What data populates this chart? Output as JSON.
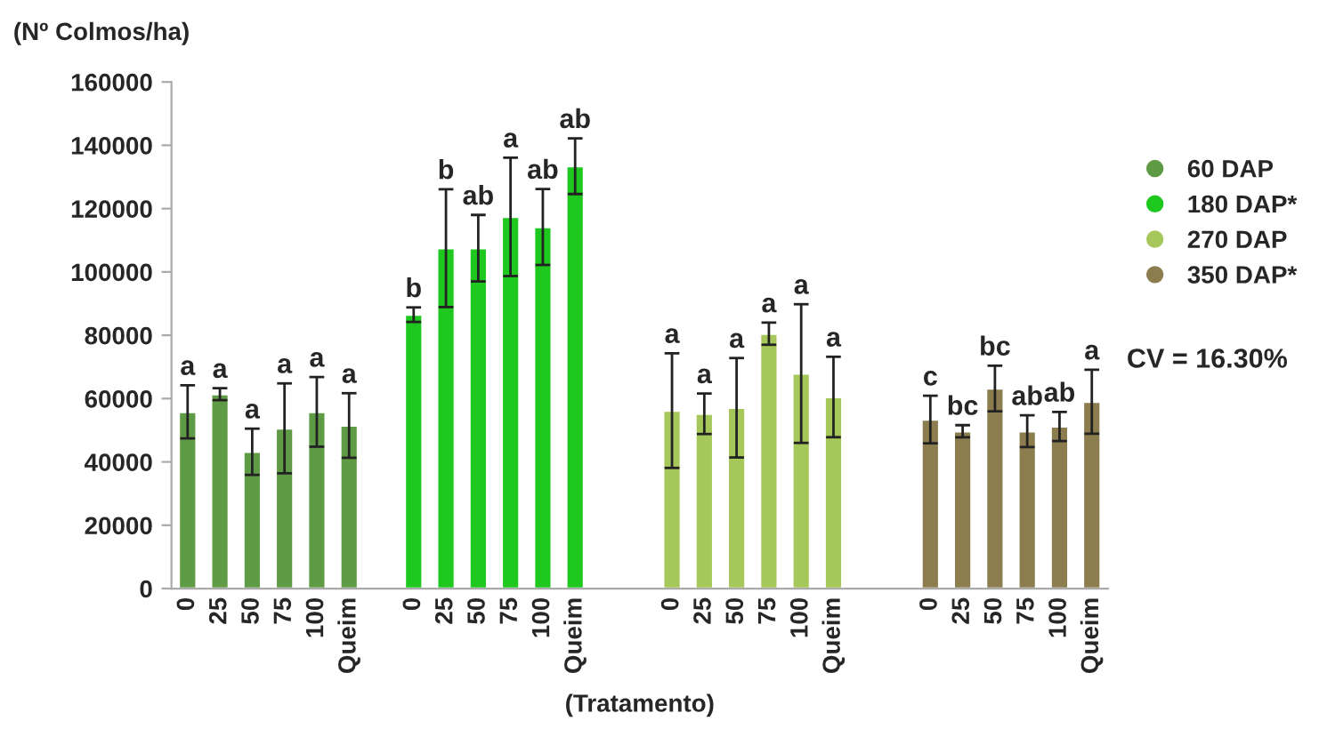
{
  "chart_data": {
    "type": "bar",
    "ylabel": "(Nº Colmos/ha)",
    "xlabel": "(Tratamento)",
    "categories": [
      "0",
      "25",
      "50",
      "75",
      "100",
      "Queim",
      null,
      "0",
      "25",
      "50",
      "75",
      "100",
      "Queim",
      null,
      null,
      "0",
      "25",
      "50",
      "75",
      "100",
      "Queim",
      null,
      null,
      "0",
      "25",
      "50",
      "75",
      "100",
      "Queim"
    ],
    "series": [
      {
        "name": "60 DAP",
        "color": "#5f9a45",
        "values": [
          55800,
          61400,
          43200,
          50600,
          55800,
          51500,
          null,
          null,
          null,
          null,
          null,
          null,
          null,
          null,
          null,
          null,
          null,
          null,
          null,
          null,
          null,
          null,
          null,
          null,
          null,
          null,
          null,
          null,
          null
        ],
        "errors": [
          8400,
          1900,
          7300,
          14200,
          11000,
          10200,
          null,
          null,
          null,
          null,
          null,
          null,
          null,
          null,
          null,
          null,
          null,
          null,
          null,
          null,
          null,
          null,
          null,
          null,
          null,
          null,
          null,
          null,
          null
        ],
        "value_labels": [
          "a",
          "a",
          "a",
          "a",
          "a",
          "a",
          null,
          null,
          null,
          null,
          null,
          null,
          null,
          null,
          null,
          null,
          null,
          null,
          null,
          null,
          null,
          null,
          null,
          null,
          null,
          null,
          null,
          null,
          null
        ]
      },
      {
        "name": "180 DAP*",
        "color": "#1ec81e",
        "values": [
          null,
          null,
          null,
          null,
          null,
          null,
          null,
          86500,
          107500,
          107500,
          117400,
          114200,
          133400,
          null,
          null,
          null,
          null,
          null,
          null,
          null,
          null,
          null,
          null,
          null,
          null,
          null,
          null,
          null,
          null
        ],
        "errors": [
          null,
          null,
          null,
          null,
          null,
          null,
          null,
          2300,
          18600,
          10500,
          18700,
          12000,
          8800,
          null,
          null,
          null,
          null,
          null,
          null,
          null,
          null,
          null,
          null,
          null,
          null,
          null,
          null,
          null,
          null
        ],
        "value_labels": [
          null,
          null,
          null,
          null,
          null,
          null,
          null,
          "b",
          "b",
          "ab",
          "a",
          "ab",
          "ab",
          null,
          null,
          null,
          null,
          null,
          null,
          null,
          null,
          null,
          null,
          null,
          null,
          null,
          null,
          null,
          null
        ]
      },
      {
        "name": "270 DAP",
        "color": "#a6c75a",
        "values": [
          null,
          null,
          null,
          null,
          null,
          null,
          null,
          null,
          null,
          null,
          null,
          null,
          null,
          null,
          null,
          56200,
          55200,
          57100,
          80500,
          67900,
          60500,
          null,
          null,
          null,
          null,
          null,
          null,
          null,
          null
        ],
        "errors": [
          null,
          null,
          null,
          null,
          null,
          null,
          null,
          null,
          null,
          null,
          null,
          null,
          null,
          null,
          null,
          18100,
          6400,
          15700,
          3500,
          21900,
          12700,
          null,
          null,
          null,
          null,
          null,
          null,
          null,
          null
        ],
        "value_labels": [
          null,
          null,
          null,
          null,
          null,
          null,
          null,
          null,
          null,
          null,
          null,
          null,
          null,
          null,
          null,
          "a",
          "a",
          "a",
          "a",
          "a",
          "a",
          null,
          null,
          null,
          null,
          null,
          null,
          null,
          null
        ]
      },
      {
        "name": "350 DAP*",
        "color": "#8b7d4e",
        "values": [
          null,
          null,
          null,
          null,
          null,
          null,
          null,
          null,
          null,
          null,
          null,
          null,
          null,
          null,
          null,
          null,
          null,
          null,
          null,
          null,
          null,
          null,
          null,
          53400,
          49700,
          63200,
          49700,
          51200,
          59000
        ],
        "errors": [
          null,
          null,
          null,
          null,
          null,
          null,
          null,
          null,
          null,
          null,
          null,
          null,
          null,
          null,
          null,
          null,
          null,
          null,
          null,
          null,
          null,
          null,
          null,
          7500,
          1900,
          7200,
          5000,
          4600,
          10100
        ],
        "value_labels": [
          null,
          null,
          null,
          null,
          null,
          null,
          null,
          null,
          null,
          null,
          null,
          null,
          null,
          null,
          null,
          null,
          null,
          null,
          null,
          null,
          null,
          null,
          null,
          "c",
          "bc",
          "bc",
          "ab",
          "ab",
          "a"
        ]
      }
    ],
    "ylim": [
      0,
      160000
    ],
    "yticks": [
      0,
      20000,
      40000,
      60000,
      80000,
      100000,
      120000,
      140000,
      160000
    ],
    "legend": "right",
    "grid": false,
    "annotations": [
      "CV = 16.30%"
    ]
  }
}
